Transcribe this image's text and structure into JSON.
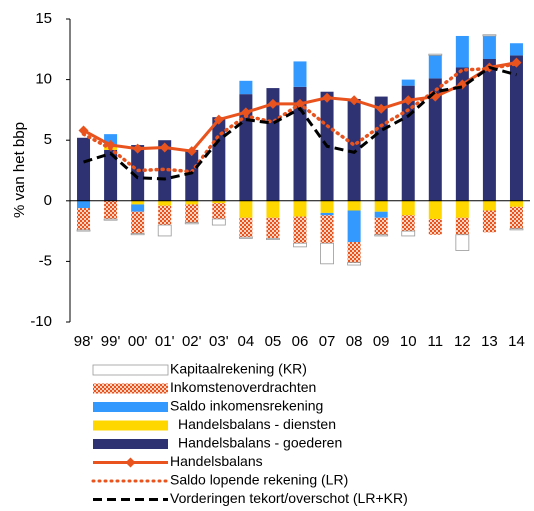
{
  "chart_data": {
    "type": "stacked_bar_line",
    "y_label": "% van het bbp",
    "categories": [
      "98'",
      "99'",
      "00'",
      "01'",
      "02'",
      "03'",
      "04",
      "05",
      "06",
      "07",
      "08",
      "09",
      "10",
      "11",
      "12",
      "13",
      "14"
    ],
    "ylim": [
      -10,
      15
    ],
    "yticks": [
      -10,
      -5,
      0,
      5,
      10,
      15
    ],
    "bar_series": [
      {
        "name": "Handelsbalans - goederen",
        "color": "#2e3272",
        "values": [
          5.2,
          4.2,
          4.6,
          5.0,
          4.2,
          6.9,
          8.8,
          9.3,
          9.4,
          9.0,
          8.4,
          8.6,
          9.5,
          10.1,
          11.0,
          11.7,
          12.0
        ]
      },
      {
        "name": "Handelsbalans - diensten",
        "color": "#ffd700",
        "values": [
          0,
          0.3,
          -0.3,
          -0.4,
          -0.3,
          -0.2,
          -1.4,
          -1.4,
          -1.3,
          -1.0,
          -0.8,
          -0.9,
          -1.2,
          -1.5,
          -1.4,
          -0.8,
          -0.5
        ]
      },
      {
        "name": "Saldo inkomensrekening",
        "color": "#3399ff",
        "values": [
          -0.6,
          1.0,
          -0.6,
          0,
          0,
          0,
          1.1,
          0,
          2.1,
          -0.2,
          -2.6,
          -0.5,
          0.5,
          1.9,
          2.6,
          1.9,
          1.0
        ]
      },
      {
        "name": "Inkomstenoverdrachten",
        "color": "#f4a582",
        "hatch": true,
        "values": [
          -1.8,
          -1.5,
          -1.8,
          -1.6,
          -1.5,
          -1.3,
          -1.6,
          -1.7,
          -2.2,
          -2.3,
          -1.7,
          -1.4,
          -1.3,
          -1.3,
          -1.4,
          -1.8,
          -1.8
        ]
      },
      {
        "name": "Kapitaalrekening (KR)",
        "color": "#ffffff",
        "values": [
          -0.1,
          -0.1,
          -0.1,
          -0.9,
          -0.1,
          -0.5,
          -0.1,
          -0.1,
          -0.3,
          -1.7,
          -0.2,
          -0.1,
          -0.4,
          0.1,
          -1.3,
          0.1,
          -0.1
        ]
      }
    ],
    "line_series": [
      {
        "name": "Handelsbalans",
        "color": "#e8531e",
        "dash": "solid",
        "marker": "diamond",
        "values": [
          5.8,
          4.6,
          4.3,
          4.4,
          4.1,
          6.7,
          7.3,
          8.0,
          8.0,
          8.5,
          8.3,
          7.6,
          8.3,
          8.6,
          9.6,
          11.0,
          11.4
        ]
      },
      {
        "name": "Saldo lopende rekening (LR)",
        "color": "#e8531e",
        "dash": "dotted",
        "values": [
          5.5,
          4.3,
          2.5,
          2.6,
          2.4,
          5.4,
          7.0,
          6.5,
          8.0,
          6.2,
          4.6,
          6.2,
          7.5,
          9.1,
          10.8,
          10.9,
          11.3
        ]
      },
      {
        "name": "Vorderingen tekort/overschot (LR+KR)",
        "color": "#000000",
        "dash": "dashed",
        "values": [
          3.2,
          3.9,
          1.9,
          1.8,
          2.3,
          5.0,
          6.7,
          6.4,
          7.6,
          4.5,
          4.0,
          5.8,
          7.0,
          9.0,
          9.4,
          11.0,
          10.4
        ]
      }
    ],
    "legend_order": [
      "Kapitaalrekening (KR)",
      "Inkomstenoverdrachten",
      "Saldo inkomensrekening",
      "Handelsbalans - diensten",
      "Handelsbalans - goederen",
      "Handelsbalans",
      "Saldo lopende rekening (LR)",
      "Vorderingen tekort/overschot (LR+KR)"
    ]
  }
}
